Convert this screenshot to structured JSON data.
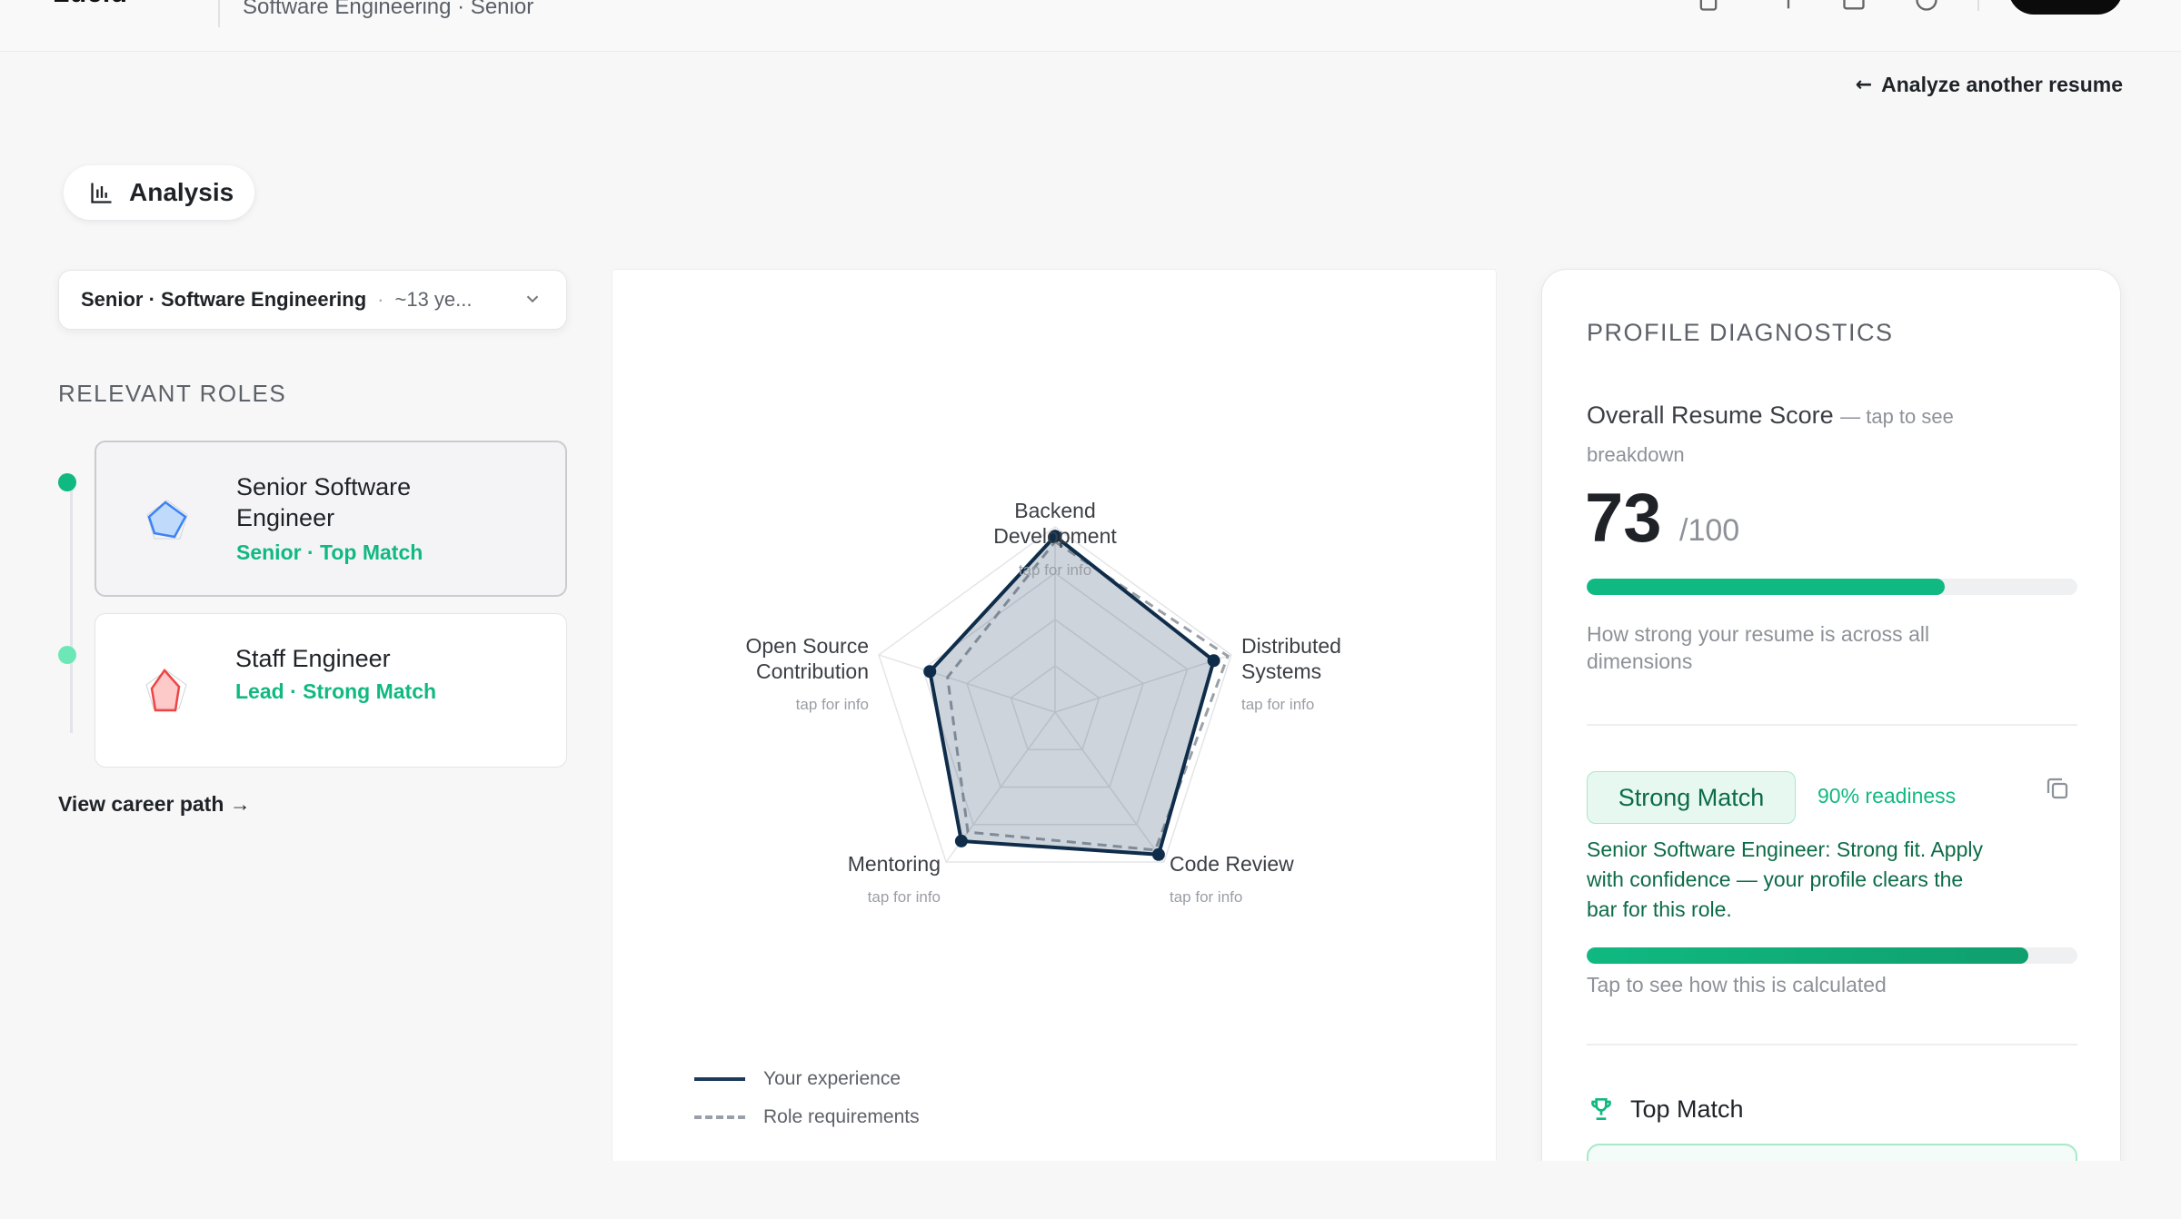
{
  "topbar": {
    "brand": "Lucid",
    "breadcrumb": "Software Engineering · Senior"
  },
  "back_link": {
    "arrow": "←",
    "label": "Analyze another resume"
  },
  "analysis_tab": {
    "label": "Analysis",
    "icon": "bar-chart-icon"
  },
  "role_select": {
    "main": "Senior · Software Engineering",
    "sep": "·",
    "extra": "~13 ye..."
  },
  "relevant_roles": {
    "heading": "RELEVANT ROLES",
    "items": [
      {
        "title": "Senior Software Engineer",
        "subtitle": "Senior · Top Match",
        "shape_color": "#3b82f6",
        "active": true
      },
      {
        "title": "Staff Engineer",
        "subtitle": "Lead · Strong Match",
        "shape_color": "#ef4444",
        "active": false
      }
    ],
    "career_link": "View career path →"
  },
  "radar": {
    "hint": "tap for info",
    "axes": [
      {
        "name": "Backend Development",
        "lines": [
          "Backend",
          "Development"
        ],
        "you": 0.95,
        "req": 0.92
      },
      {
        "name": "Distributed Systems",
        "lines": [
          "Distributed",
          "Systems"
        ],
        "you": 0.9,
        "req": 0.98
      },
      {
        "name": "Code Review",
        "lines": [
          "Code Review"
        ],
        "you": 0.95,
        "req": 0.92
      },
      {
        "name": "Mentoring",
        "lines": [
          "Mentoring"
        ],
        "you": 0.86,
        "req": 0.8
      },
      {
        "name": "Open Source Contribution",
        "lines": [
          "Open Source",
          "Contribution"
        ],
        "you": 0.71,
        "req": 0.61
      }
    ],
    "legend": {
      "yours": "Your experience",
      "requirements": "Role requirements"
    },
    "colors": {
      "you_stroke": "#0f2d4a",
      "you_fill": "#1d3a5a",
      "req_stroke": "#9aa0a8",
      "grid": "#e4e5e8"
    }
  },
  "diagnostics": {
    "title": "PROFILE DIAGNOSTICS",
    "score_label": "Overall Resume Score",
    "score_hint": "— tap to see breakdown",
    "score": "73",
    "score_max": "/100",
    "score_fraction": 0.73,
    "score_desc": "How strong your resume is across all dimensions",
    "match_badge": "Strong Match",
    "readiness": "90% readiness",
    "readiness_fraction": 0.9,
    "match_text": "Senior Software Engineer: Strong fit. Apply with confidence — your profile clears the bar for this role.",
    "calc_hint": "Tap to see how this is calculated",
    "top_match_label": "Top Match"
  }
}
